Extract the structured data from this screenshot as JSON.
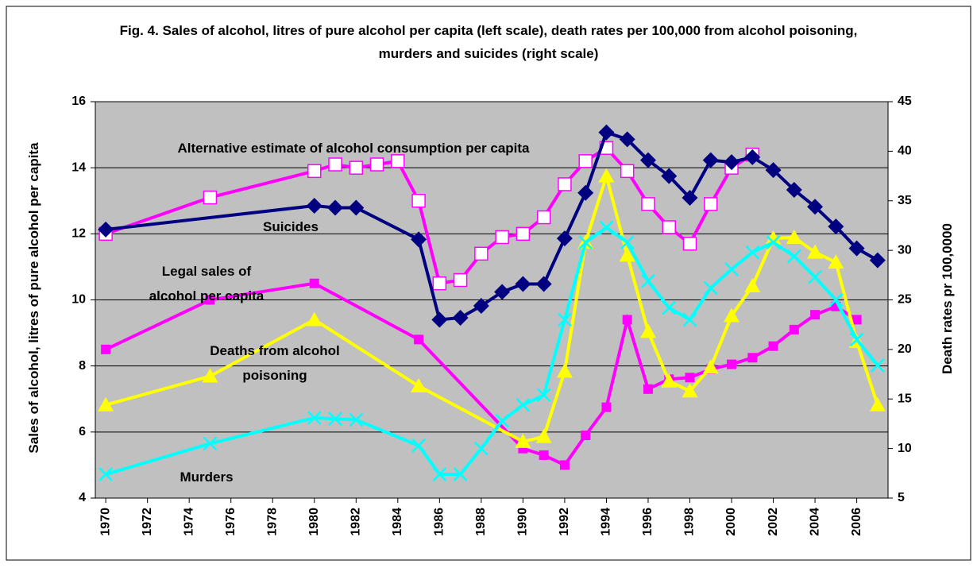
{
  "chart_data": {
    "type": "line",
    "title": "Fig.  4. Sales of alcohol, litres of pure alcohol per capita (left scale),  death rates per 100,000 from alcohol poisoning, murders and suicides (right scale)",
    "y_label": "Sales of alcohol, litres of pure alcohol per capita",
    "y2_label": "Death rates pr 100,0000",
    "xlim": [
      1969.5,
      2007.5
    ],
    "xticks": [
      1970,
      1972,
      1974,
      1976,
      1978,
      1980,
      1982,
      1984,
      1986,
      1988,
      1990,
      1992,
      1994,
      1996,
      1998,
      2000,
      2002,
      2004,
      2006
    ],
    "ylim": [
      4,
      16
    ],
    "yticks": [
      4,
      6,
      8,
      10,
      12,
      14,
      16
    ],
    "y2lim": [
      5,
      45
    ],
    "y2ticks": [
      5,
      10,
      15,
      20,
      25,
      30,
      35,
      40,
      45
    ],
    "grid": true,
    "background": "#c0c0c0",
    "series": [
      {
        "name": "Alternative estimate of alcohol consumption per capita",
        "color": "#ff00ff",
        "axis": "y",
        "marker": "square-open",
        "x": [
          1970,
          1975,
          1980,
          1981,
          1982,
          1983,
          1984,
          1985,
          1986,
          1987,
          1988,
          1989,
          1990,
          1991,
          1992,
          1993,
          1994,
          1995,
          1996,
          1997,
          1998,
          1999,
          2000,
          2001
        ],
        "values": [
          12.0,
          13.1,
          13.9,
          14.1,
          14.0,
          14.1,
          14.2,
          13.0,
          10.5,
          10.6,
          11.4,
          11.9,
          12.0,
          12.5,
          13.5,
          14.2,
          14.6,
          13.9,
          12.9,
          12.2,
          11.7,
          12.9,
          14.0,
          14.4
        ]
      },
      {
        "name": "Suicides",
        "color": "#000080",
        "axis": "y2",
        "marker": "diamond",
        "x": [
          1970,
          1980,
          1981,
          1982,
          1985,
          1986,
          1987,
          1988,
          1989,
          1990,
          1991,
          1992,
          1993,
          1994,
          1995,
          1996,
          1997,
          1998,
          1999,
          2000,
          2001,
          2002,
          2003,
          2004,
          2005,
          2006,
          2007
        ],
        "values": [
          32.1,
          34.5,
          34.3,
          34.3,
          31.1,
          23.0,
          23.2,
          24.4,
          25.8,
          26.6,
          26.6,
          31.2,
          35.8,
          41.9,
          41.2,
          39.1,
          37.5,
          35.3,
          39.1,
          38.9,
          39.4,
          38.1,
          36.1,
          34.4,
          32.4,
          30.2,
          29.0
        ]
      },
      {
        "name": "Legal sales of alcohol per capita",
        "color": "#ff00ff",
        "axis": "y",
        "marker": "square",
        "x": [
          1970,
          1975,
          1980,
          1985,
          1990,
          1991,
          1992,
          1993,
          1994,
          1995,
          1996,
          1997,
          1998,
          1999,
          2000,
          2001,
          2002,
          2003,
          2004,
          2005,
          2006
        ],
        "values": [
          8.5,
          10.0,
          10.5,
          8.8,
          5.5,
          5.3,
          5.0,
          5.9,
          6.75,
          9.4,
          7.3,
          7.6,
          7.65,
          7.9,
          8.05,
          8.25,
          8.6,
          9.1,
          9.55,
          9.8,
          9.4
        ]
      },
      {
        "name": "Deaths from alcohol poisoning",
        "color": "#ffff00",
        "axis": "y2",
        "marker": "triangle",
        "x": [
          1970,
          1975,
          1980,
          1985,
          1990,
          1991,
          1992,
          1993,
          1994,
          1995,
          1996,
          1997,
          1998,
          1999,
          2000,
          2001,
          2002,
          2003,
          2004,
          2005,
          2006,
          2007
        ],
        "values": [
          14.4,
          17.3,
          23.0,
          16.3,
          10.7,
          11.2,
          17.8,
          30.8,
          37.5,
          29.5,
          21.8,
          16.8,
          15.8,
          18.2,
          23.4,
          26.4,
          31.2,
          31.3,
          29.8,
          28.8,
          20.8,
          14.4
        ]
      },
      {
        "name": "Murders",
        "color": "#00ffff",
        "axis": "y2",
        "marker": "x",
        "x": [
          1970,
          1975,
          1980,
          1981,
          1982,
          1985,
          1986,
          1987,
          1988,
          1989,
          1990,
          1991,
          1992,
          1993,
          1994,
          1995,
          1996,
          1997,
          1998,
          1999,
          2000,
          2001,
          2002,
          2003,
          2004,
          2005,
          2006,
          2007
        ],
        "values": [
          7.4,
          10.5,
          13.1,
          13.0,
          12.9,
          10.3,
          7.4,
          7.4,
          10.0,
          12.8,
          14.4,
          15.4,
          23.0,
          30.8,
          32.3,
          30.8,
          26.9,
          24.2,
          23.0,
          26.2,
          28.1,
          29.8,
          30.8,
          29.4,
          27.3,
          25.0,
          21.0,
          18.4
        ]
      }
    ]
  }
}
